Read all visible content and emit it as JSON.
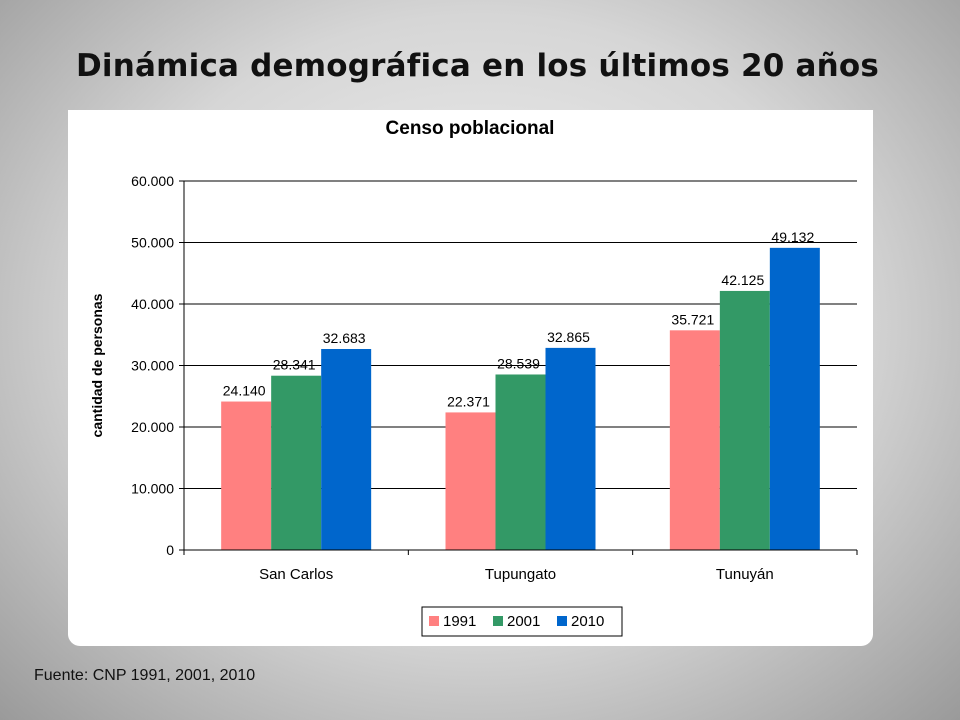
{
  "slide": {
    "title": "Dinámica demográfica en los últimos 20 años",
    "source": "Fuente: CNP 1991, 2001, 2010"
  },
  "chart_data": {
    "type": "bar",
    "title": "Censo poblacional",
    "ylabel": "cantidad de personas",
    "xlabel": "",
    "categories": [
      "San Carlos",
      "Tupungato",
      "Tunuyán"
    ],
    "series": [
      {
        "name": "1991",
        "color": "#ff8080",
        "values": [
          24140,
          22371,
          35721
        ],
        "labels": [
          "24.140",
          "22.371",
          "35.721"
        ]
      },
      {
        "name": "2001",
        "color": "#339966",
        "values": [
          28341,
          28539,
          42125
        ],
        "labels": [
          "28.341",
          "28.539",
          "42.125"
        ]
      },
      {
        "name": "2010",
        "color": "#0066cc",
        "values": [
          32683,
          32865,
          49132
        ],
        "labels": [
          "32.683",
          "32.865",
          "49.132"
        ]
      }
    ],
    "ylim": [
      0,
      60000
    ],
    "yticks": [
      0,
      10000,
      20000,
      30000,
      40000,
      50000,
      60000
    ],
    "ytick_labels": [
      "0",
      "10.000",
      "20.000",
      "30.000",
      "40.000",
      "50.000",
      "60.000"
    ],
    "grid": true,
    "legend_position": "bottom-center"
  }
}
